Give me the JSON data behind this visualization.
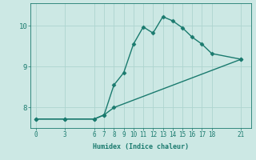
{
  "xlabel": "Humidex (Indice chaleur)",
  "ylabel": "",
  "bg_color": "#cce8e4",
  "line_color": "#1a7a6e",
  "grid_color": "#aed4cf",
  "line1_x": [
    0,
    3,
    6,
    7,
    8,
    9,
    10,
    11,
    12,
    13,
    14,
    15,
    16,
    17,
    18,
    21
  ],
  "line1_y": [
    7.72,
    7.72,
    7.72,
    7.82,
    8.55,
    8.85,
    9.55,
    9.97,
    9.82,
    10.22,
    10.12,
    9.95,
    9.72,
    9.55,
    9.32,
    9.18
  ],
  "line2_x": [
    0,
    3,
    6,
    7,
    8,
    21
  ],
  "line2_y": [
    7.72,
    7.72,
    7.72,
    7.82,
    8.0,
    9.18
  ],
  "xlim": [
    -0.5,
    22
  ],
  "ylim": [
    7.5,
    10.55
  ],
  "xticks": [
    0,
    3,
    6,
    7,
    8,
    9,
    10,
    11,
    12,
    13,
    14,
    15,
    16,
    17,
    18,
    21
  ],
  "yticks": [
    8,
    9,
    10
  ],
  "marker": "D",
  "marker_size": 2.5,
  "linewidth": 1.0,
  "tick_fontsize": 5.5,
  "xlabel_fontsize": 6.0
}
